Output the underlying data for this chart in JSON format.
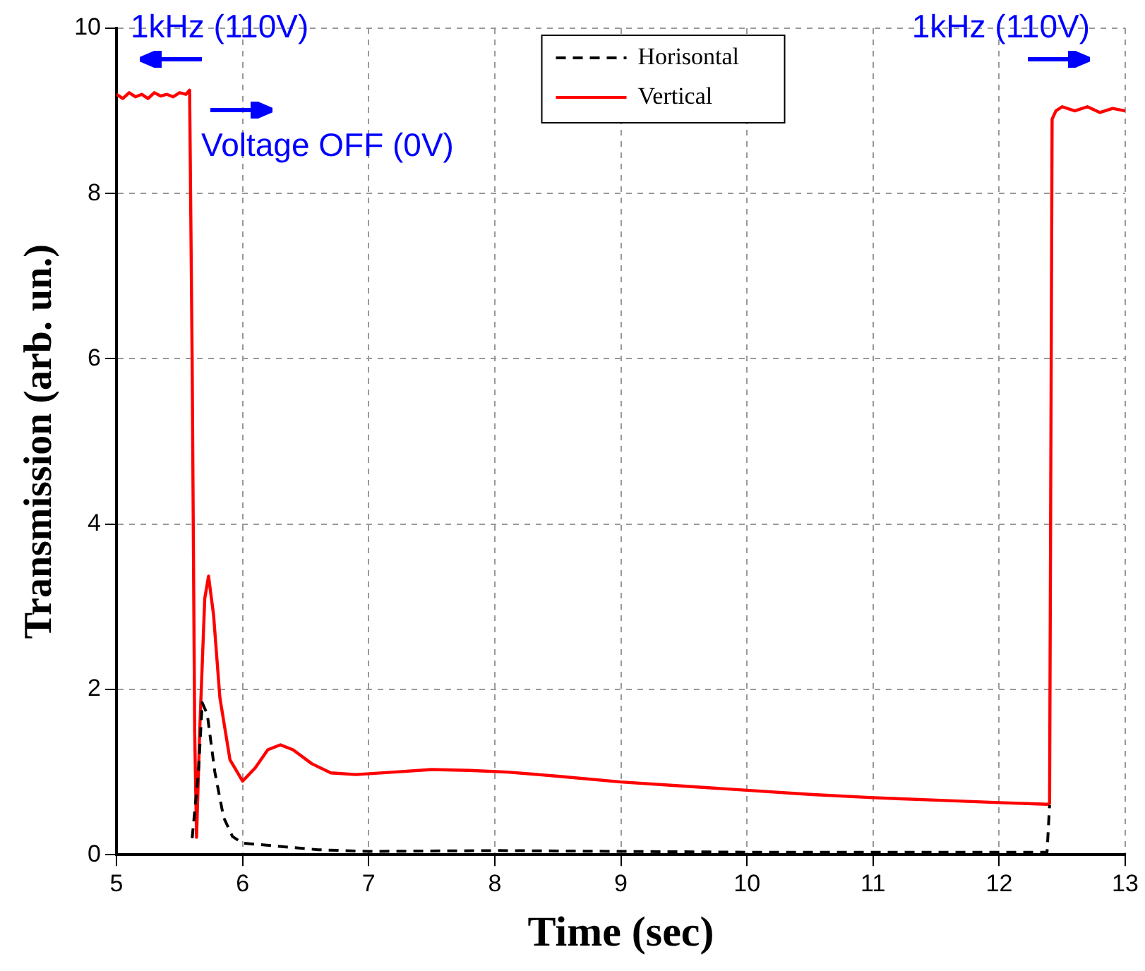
{
  "chart_data": {
    "type": "line",
    "xlabel": "Time (sec)",
    "ylabel": "Transmission (arb. un.)",
    "xlim": [
      5,
      13
    ],
    "xticks": [
      5,
      6,
      7,
      8,
      9,
      10,
      11,
      12,
      13
    ],
    "ylim": [
      0,
      10
    ],
    "yticks": [
      0,
      2,
      4,
      6,
      8,
      10
    ],
    "grid": true,
    "legend": "top",
    "marker": "none",
    "series": [
      {
        "name": "Horisontal",
        "color": "#000000",
        "line_style": "dashed",
        "x": [
          5.6,
          5.65,
          5.68,
          5.72,
          5.78,
          5.85,
          5.92,
          6.0,
          6.3,
          6.6,
          7.0,
          8.0,
          9.0,
          10.0,
          11.0,
          12.0,
          12.38,
          12.4
        ],
        "values": [
          0.2,
          1.0,
          1.84,
          1.7,
          1.0,
          0.45,
          0.22,
          0.14,
          0.1,
          0.06,
          0.04,
          0.05,
          0.04,
          0.03,
          0.03,
          0.03,
          0.03,
          0.6
        ]
      },
      {
        "name": "Vertical",
        "color": "#ff0000",
        "line_style": "solid",
        "x": [
          5.0,
          5.05,
          5.1,
          5.15,
          5.2,
          5.25,
          5.3,
          5.35,
          5.4,
          5.45,
          5.5,
          5.55,
          5.58,
          5.6,
          5.62,
          5.635,
          5.66,
          5.7,
          5.73,
          5.77,
          5.82,
          5.9,
          6.0,
          6.1,
          6.2,
          6.3,
          6.4,
          6.55,
          6.7,
          6.9,
          7.2,
          7.5,
          7.8,
          8.1,
          8.5,
          9.0,
          9.5,
          10.0,
          10.5,
          11.0,
          11.5,
          12.0,
          12.38,
          12.4,
          12.42,
          12.45,
          12.5,
          12.6,
          12.7,
          12.8,
          12.9,
          13.0
        ],
        "values": [
          9.2,
          9.15,
          9.22,
          9.17,
          9.2,
          9.15,
          9.22,
          9.18,
          9.2,
          9.17,
          9.22,
          9.2,
          9.25,
          6.0,
          1.5,
          0.21,
          1.5,
          3.1,
          3.37,
          2.9,
          1.9,
          1.15,
          0.89,
          1.05,
          1.27,
          1.33,
          1.27,
          1.1,
          0.99,
          0.97,
          1.0,
          1.03,
          1.02,
          1.0,
          0.95,
          0.88,
          0.83,
          0.78,
          0.73,
          0.69,
          0.66,
          0.63,
          0.61,
          0.62,
          8.9,
          9.0,
          9.05,
          9.0,
          9.05,
          8.98,
          9.03,
          9.0
        ]
      }
    ],
    "annotations": [
      "1kHz (110V)",
      "Voltage OFF (0V)",
      "1kHz (110V)"
    ]
  }
}
